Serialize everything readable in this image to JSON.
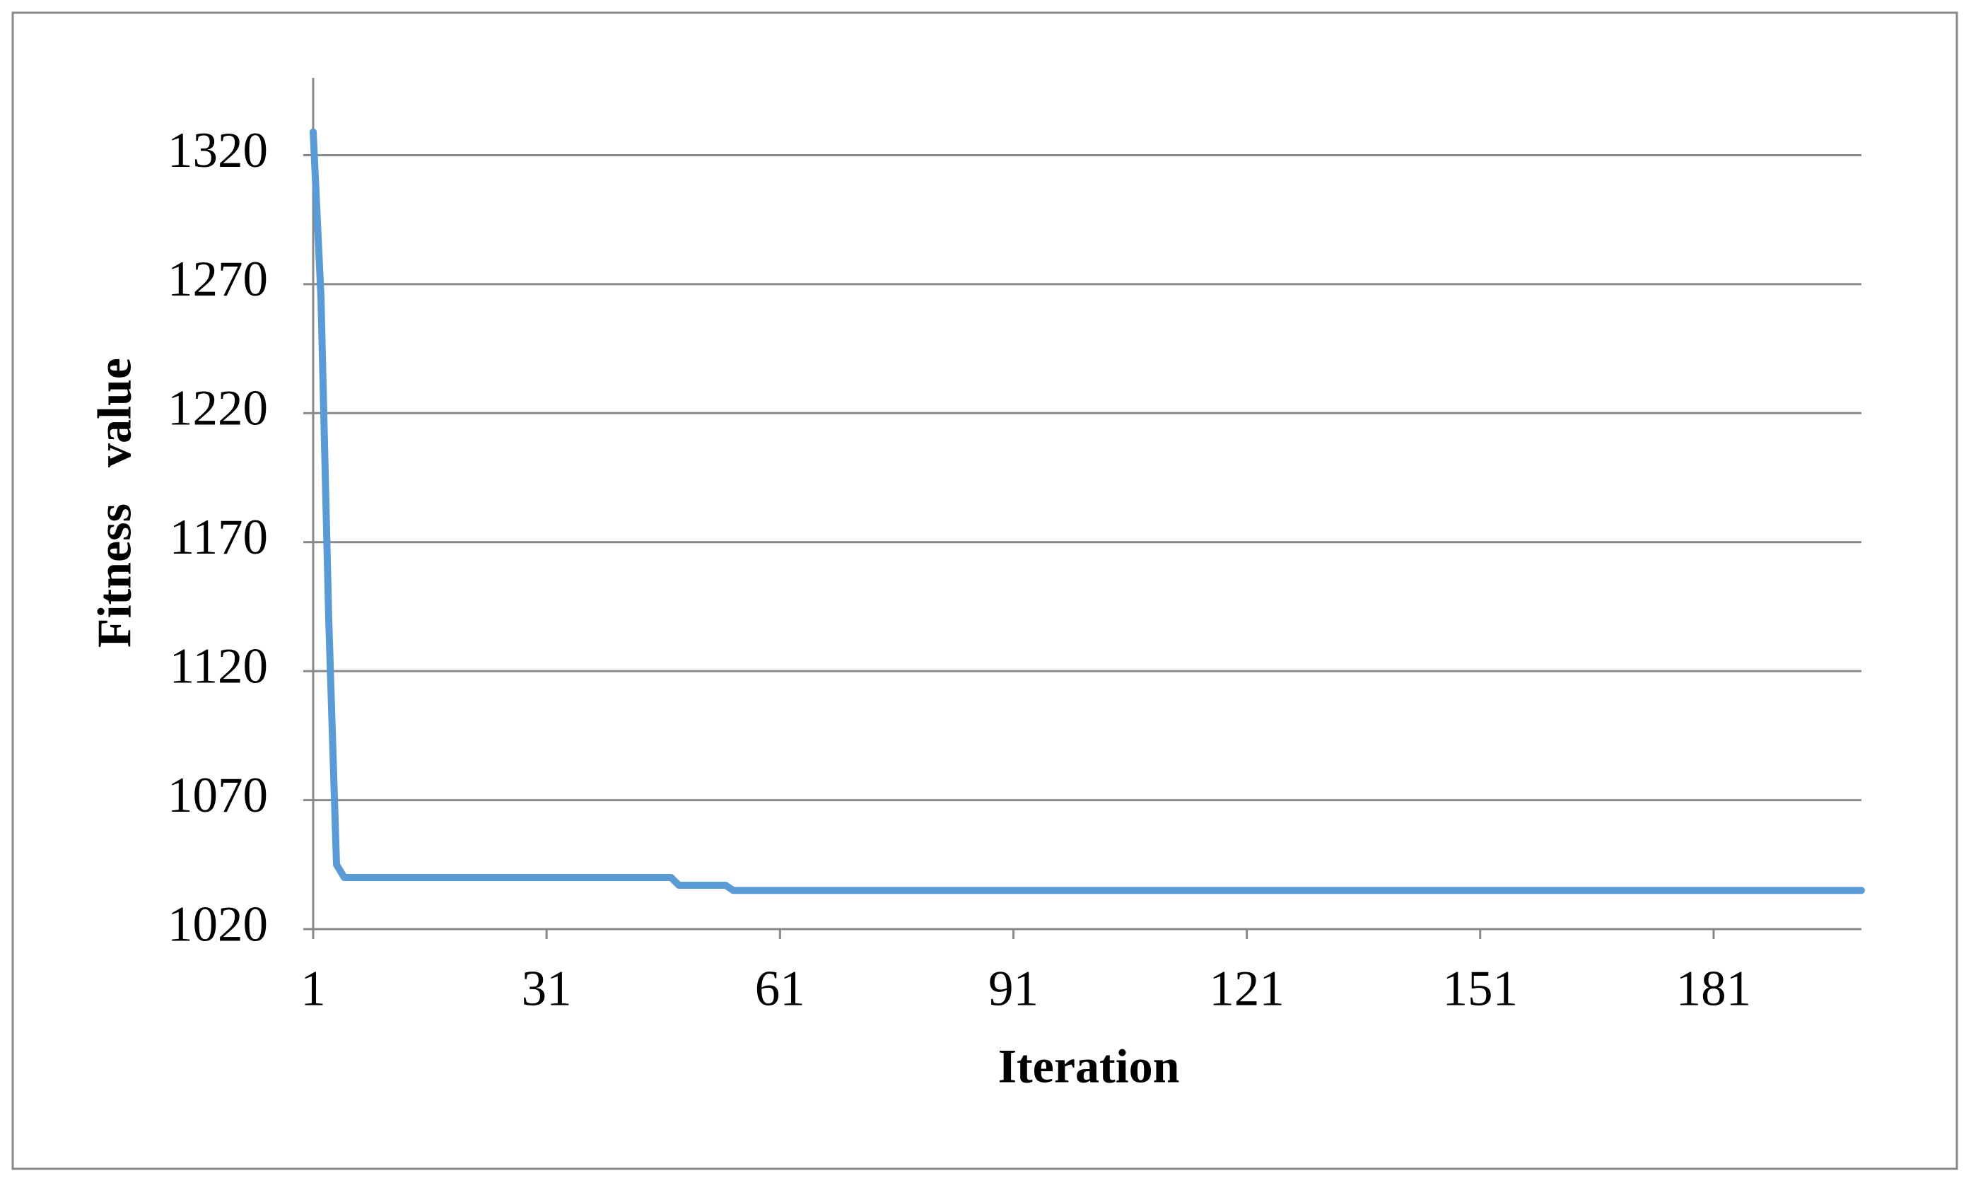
{
  "chart_data": {
    "type": "line",
    "x_label": "Iteration",
    "y_label": "Fitness   value",
    "x": [
      1,
      2,
      3,
      4,
      5,
      6,
      7,
      8,
      9,
      10,
      11,
      12,
      13,
      14,
      15,
      16,
      17,
      18,
      19,
      20,
      21,
      22,
      23,
      24,
      25,
      26,
      27,
      28,
      29,
      30,
      31,
      32,
      33,
      34,
      35,
      36,
      37,
      38,
      39,
      40,
      41,
      42,
      43,
      44,
      45,
      46,
      47,
      48,
      49,
      50,
      51,
      52,
      53,
      54,
      55,
      56,
      57,
      58,
      59,
      60,
      61,
      62,
      63,
      64,
      65,
      66,
      67,
      68,
      69,
      70,
      71,
      72,
      73,
      74,
      75,
      76,
      77,
      78,
      79,
      80,
      81,
      82,
      83,
      84,
      85,
      86,
      87,
      88,
      89,
      90,
      91,
      92,
      93,
      94,
      95,
      96,
      97,
      98,
      99,
      100,
      101,
      102,
      103,
      104,
      105,
      106,
      107,
      108,
      109,
      110,
      111,
      112,
      113,
      114,
      115,
      116,
      117,
      118,
      119,
      120,
      121,
      122,
      123,
      124,
      125,
      126,
      127,
      128,
      129,
      130,
      131,
      132,
      133,
      134,
      135,
      136,
      137,
      138,
      139,
      140,
      141,
      142,
      143,
      144,
      145,
      146,
      147,
      148,
      149,
      150,
      151,
      152,
      153,
      154,
      155,
      156,
      157,
      158,
      159,
      160,
      161,
      162,
      163,
      164,
      165,
      166,
      167,
      168,
      169,
      170,
      171,
      172,
      173,
      174,
      175,
      176,
      177,
      178,
      179,
      180,
      181,
      182,
      183,
      184,
      185,
      186,
      187,
      188,
      189,
      190,
      191,
      192,
      193,
      194,
      195,
      196,
      197,
      198,
      199,
      200
    ],
    "series": [
      {
        "color": "#5b9bd5",
        "values": [
          1329,
          1265,
          1140,
          1045,
          1040,
          1040,
          1040,
          1040,
          1040,
          1040,
          1040,
          1040,
          1040,
          1040,
          1040,
          1040,
          1040,
          1040,
          1040,
          1040,
          1040,
          1040,
          1040,
          1040,
          1040,
          1040,
          1040,
          1040,
          1040,
          1040,
          1040,
          1040,
          1040,
          1040,
          1040,
          1040,
          1040,
          1040,
          1040,
          1040,
          1040,
          1040,
          1040,
          1040,
          1040,
          1040,
          1040,
          1037,
          1037,
          1037,
          1037,
          1037,
          1037,
          1037,
          1035,
          1035,
          1035,
          1035,
          1035,
          1035,
          1035,
          1035,
          1035,
          1035,
          1035,
          1035,
          1035,
          1035,
          1035,
          1035,
          1035,
          1035,
          1035,
          1035,
          1035,
          1035,
          1035,
          1035,
          1035,
          1035,
          1035,
          1035,
          1035,
          1035,
          1035,
          1035,
          1035,
          1035,
          1035,
          1035,
          1035,
          1035,
          1035,
          1035,
          1035,
          1035,
          1035,
          1035,
          1035,
          1035,
          1035,
          1035,
          1035,
          1035,
          1035,
          1035,
          1035,
          1035,
          1035,
          1035,
          1035,
          1035,
          1035,
          1035,
          1035,
          1035,
          1035,
          1035,
          1035,
          1035,
          1035,
          1035,
          1035,
          1035,
          1035,
          1035,
          1035,
          1035,
          1035,
          1035,
          1035,
          1035,
          1035,
          1035,
          1035,
          1035,
          1035,
          1035,
          1035,
          1035,
          1035,
          1035,
          1035,
          1035,
          1035,
          1035,
          1035,
          1035,
          1035,
          1035,
          1035,
          1035,
          1035,
          1035,
          1035,
          1035,
          1035,
          1035,
          1035,
          1035,
          1035,
          1035,
          1035,
          1035,
          1035,
          1035,
          1035,
          1035,
          1035,
          1035,
          1035,
          1035,
          1035,
          1035,
          1035,
          1035,
          1035,
          1035,
          1035,
          1035,
          1035,
          1035,
          1035,
          1035,
          1035,
          1035,
          1035,
          1035,
          1035,
          1035,
          1035,
          1035,
          1035,
          1035,
          1035,
          1035,
          1035,
          1035,
          1035,
          1035
        ]
      }
    ],
    "xlim": [
      1,
      200
    ],
    "xticks": [
      1,
      31,
      61,
      91,
      121,
      151,
      181
    ],
    "ylim": [
      1020,
      1350
    ],
    "yticks": [
      1020,
      1070,
      1120,
      1170,
      1220,
      1270,
      1320
    ],
    "grid": true
  }
}
